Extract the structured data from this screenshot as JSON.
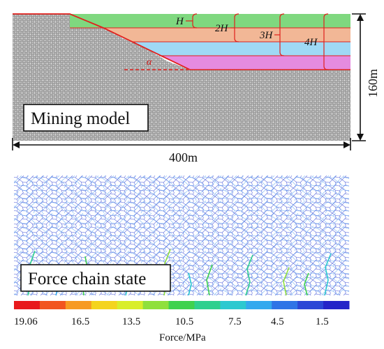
{
  "model": {
    "box_label": "Mining model",
    "width_label": "400m",
    "height_label": "160m",
    "angle_label": "α",
    "layer_labels": [
      "H",
      "2H",
      "3H",
      "4H"
    ],
    "layer_colors": [
      "#7fd87f",
      "#f2b796",
      "#9fd9f5",
      "#e58be0"
    ],
    "particle_color": "#b8b8b8",
    "boundary_color": "#e0201c"
  },
  "force_chain": {
    "box_label": "Force chain state"
  },
  "colorbar": {
    "title": "Force/MPa",
    "tick_labels": [
      "19.06",
      "16.5",
      "13.5",
      "10.5",
      "7.5",
      "4.5",
      "1.5"
    ],
    "colors": [
      "#e8191c",
      "#f2551f",
      "#f79a22",
      "#f4d41e",
      "#d9ee2a",
      "#8fe03c",
      "#3fd24e",
      "#2fd08e",
      "#2cc9d0",
      "#34a9ee",
      "#2f74e6",
      "#2b47d6",
      "#2424c8"
    ]
  }
}
